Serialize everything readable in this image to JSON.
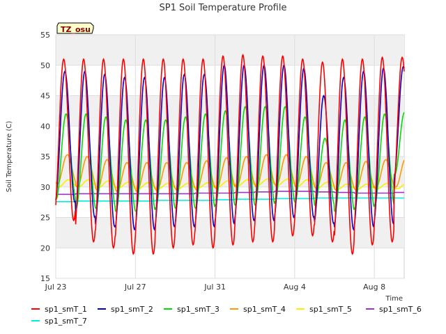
{
  "chart_data": {
    "type": "line",
    "title": "SP1 Soil Temperature Profile",
    "xlabel": "Time",
    "ylabel": "Soil Temperature (C)",
    "ylim": [
      15,
      55
    ],
    "y_ticks": [
      15,
      20,
      25,
      30,
      35,
      40,
      45,
      50,
      55
    ],
    "x_range": [
      "2016-07-23",
      "2016-08-09T12:00"
    ],
    "x_ticks": [
      {
        "date": "2016-07-23",
        "label": "Jul 23"
      },
      {
        "date": "2016-07-27",
        "label": "Jul 27"
      },
      {
        "date": "2016-07-31",
        "label": "Jul 31"
      },
      {
        "date": "2016-08-04",
        "label": "Aug 4"
      },
      {
        "date": "2016-08-08",
        "label": "Aug 8"
      }
    ],
    "badge": "TZ_osu",
    "grid": true,
    "legend_position": "bottom",
    "series": [
      {
        "name": "sp1_smT_1",
        "color": "#ff0000",
        "daily_max": [
          51,
          51,
          51,
          51,
          51,
          51,
          51,
          51,
          51.5,
          51.7,
          51.5,
          51.5,
          51,
          50.5,
          51,
          51,
          51.3,
          51.3
        ],
        "daily_min": [
          24.5,
          21,
          20,
          19,
          19,
          20,
          20.5,
          20,
          20.5,
          21,
          21,
          22,
          22,
          21,
          19,
          20.5,
          21,
          27
        ]
      },
      {
        "name": "sp1_smT_2",
        "color": "#0000cc",
        "daily_max": [
          49,
          49,
          48.5,
          48,
          48,
          48,
          48.5,
          48.5,
          50,
          50,
          50,
          50,
          49.5,
          45,
          48,
          49,
          49.5,
          49.8
        ],
        "daily_min": [
          27.5,
          25,
          23.5,
          23,
          23,
          23.5,
          23.5,
          23.5,
          24,
          24.5,
          24.5,
          25,
          25,
          24,
          23,
          23.5,
          24,
          31
        ]
      },
      {
        "name": "sp1_smT_3",
        "color": "#00dd00",
        "daily_max": [
          42,
          42,
          41.5,
          41,
          41,
          41,
          41.5,
          42,
          42.5,
          43.2,
          43.2,
          43.2,
          41.5,
          38,
          41,
          41.5,
          42,
          42.3
        ],
        "daily_min": [
          28,
          26.5,
          26.5,
          26,
          26,
          26.5,
          26.5,
          26.5,
          27,
          27,
          27,
          27.5,
          27.5,
          27,
          26,
          26.5,
          27,
          32
        ]
      },
      {
        "name": "sp1_smT_4",
        "color": "#ff9900",
        "daily_max": [
          35.3,
          35,
          34.5,
          34,
          34,
          34,
          34,
          34.3,
          34.8,
          35,
          35.3,
          35.3,
          35,
          34,
          34,
          34.2,
          34.5,
          34.7
        ],
        "daily_min": [
          30.5,
          30,
          29.5,
          29.3,
          29.3,
          29.4,
          29.5,
          29.5,
          29.7,
          30,
          30,
          30.2,
          30,
          29.8,
          29.5,
          29.5,
          29.8,
          30
        ]
      },
      {
        "name": "sp1_smT_5",
        "color": "#ffee00",
        "daily_max": [
          31.2,
          31.2,
          31,
          30.8,
          30.7,
          30.6,
          30.6,
          30.7,
          31,
          31.2,
          31.3,
          31.3,
          31.2,
          30.8,
          30.5,
          30.5,
          30.6,
          30.6
        ],
        "daily_min": [
          30,
          30,
          29.9,
          29.8,
          29.7,
          29.7,
          29.7,
          29.8,
          30,
          30.2,
          30.3,
          30.3,
          30.1,
          29.8,
          29.6,
          29.6,
          29.7,
          29.7
        ]
      },
      {
        "name": "sp1_smT_6",
        "color": "#9933cc",
        "daily_max": [
          28.8,
          28.9,
          28.9,
          28.9,
          28.9,
          28.9,
          28.9,
          29,
          29,
          29.1,
          29.2,
          29.3,
          29.3,
          29.2,
          29.1,
          29,
          29,
          29.1
        ],
        "daily_min": [
          28.8,
          28.9,
          28.9,
          28.9,
          28.9,
          28.9,
          28.9,
          29,
          29,
          29.1,
          29.2,
          29.3,
          29.3,
          29.2,
          29.1,
          29,
          29,
          29.1
        ]
      },
      {
        "name": "sp1_smT_7",
        "color": "#00eedd",
        "daily_max": [
          27.6,
          27.7,
          27.7,
          27.7,
          27.7,
          27.8,
          27.8,
          27.8,
          27.9,
          28,
          28,
          28.1,
          28.1,
          28.2,
          28.2,
          28.2,
          28.2,
          28.2
        ],
        "daily_min": [
          27.6,
          27.7,
          27.7,
          27.7,
          27.7,
          27.8,
          27.8,
          27.8,
          27.9,
          28,
          28,
          28.1,
          28.1,
          28.2,
          28.2,
          28.2,
          28.2,
          28.2
        ]
      }
    ]
  }
}
